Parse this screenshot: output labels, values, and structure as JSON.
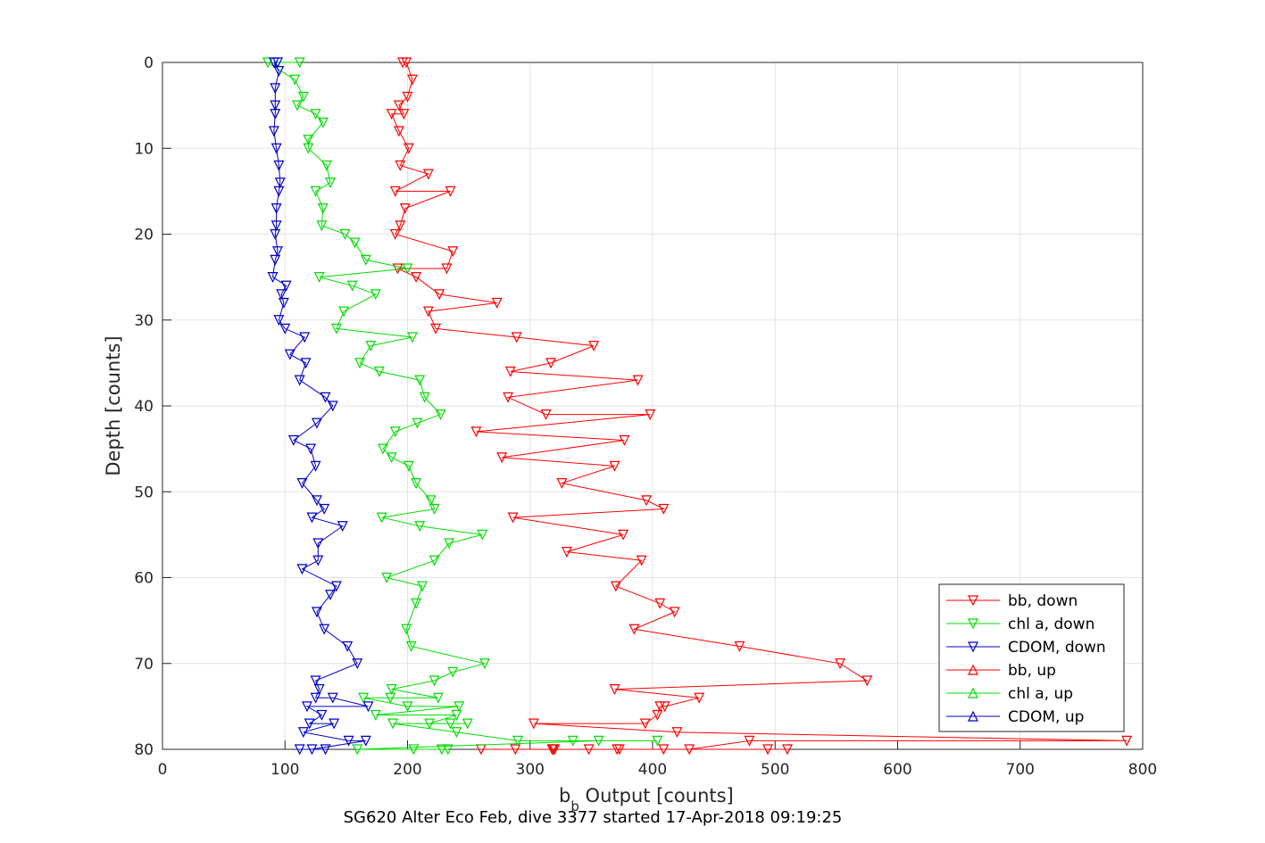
{
  "chart_data": {
    "type": "line",
    "xlabel_main": "b",
    "xlabel_sub": "b",
    "xlabel_rest": " Output [counts]",
    "ylabel": "Depth [counts]",
    "subtitle": "SG620 Alter Eco Feb, dive 3377 started 17-Apr-2018 09:19:25",
    "xlim": [
      0,
      800
    ],
    "ylim": [
      0,
      80
    ],
    "y_reversed": true,
    "grid": true,
    "legend_position": "bottom-right",
    "xticks": [
      "0",
      "100",
      "200",
      "300",
      "400",
      "500",
      "600",
      "700",
      "800"
    ],
    "yticks": [
      "0",
      "10",
      "20",
      "30",
      "40",
      "50",
      "60",
      "70",
      "80"
    ],
    "series": [
      {
        "name": "bb, down",
        "color": "#ff0000",
        "marker": "down",
        "points": [
          [
            196,
            0
          ],
          [
            199,
            0
          ],
          [
            204,
            2
          ],
          [
            200,
            4
          ],
          [
            193,
            5
          ],
          [
            197,
            6
          ],
          [
            187,
            6
          ],
          [
            193,
            8
          ],
          [
            201,
            10
          ],
          [
            194,
            12
          ],
          [
            217,
            13
          ],
          [
            190,
            15
          ],
          [
            235,
            15
          ],
          [
            198,
            17
          ],
          [
            194,
            19
          ],
          [
            190,
            20
          ],
          [
            237,
            22
          ],
          [
            232,
            24
          ],
          [
            192,
            24
          ],
          [
            207,
            25
          ],
          [
            226,
            27
          ],
          [
            273,
            28
          ],
          [
            217,
            29
          ],
          [
            223,
            31
          ],
          [
            289,
            32
          ],
          [
            352,
            33
          ],
          [
            317,
            35
          ],
          [
            284,
            36
          ],
          [
            388,
            37
          ],
          [
            282,
            39
          ],
          [
            313,
            41
          ],
          [
            398,
            41
          ],
          [
            256,
            43
          ],
          [
            377,
            44
          ],
          [
            277,
            46
          ],
          [
            369,
            47
          ],
          [
            326,
            49
          ],
          [
            395,
            51
          ],
          [
            409,
            52
          ],
          [
            286,
            53
          ],
          [
            376,
            55
          ],
          [
            330,
            57
          ],
          [
            391,
            58
          ],
          [
            370,
            61
          ],
          [
            406,
            63
          ],
          [
            418,
            64
          ],
          [
            385,
            66
          ],
          [
            471,
            68
          ],
          [
            553,
            70
          ],
          [
            575,
            72
          ],
          [
            369,
            73
          ],
          [
            438,
            74
          ],
          [
            410,
            75
          ],
          [
            406,
            75
          ],
          [
            404,
            76
          ],
          [
            394,
            77
          ],
          [
            303,
            77
          ],
          [
            420,
            78
          ],
          [
            787,
            79
          ],
          [
            479,
            79
          ],
          [
            430,
            80
          ],
          [
            373,
            80
          ],
          [
            318,
            80
          ],
          [
            348,
            80
          ],
          [
            260,
            80
          ],
          [
            494,
            80
          ],
          [
            510,
            80
          ],
          [
            371,
            80
          ],
          [
            288,
            80
          ],
          [
            409,
            80
          ],
          [
            320,
            80
          ],
          [
            319,
            80
          ]
        ]
      },
      {
        "name": "chl a, down",
        "color": "#00dd00",
        "marker": "down",
        "points": [
          [
            112,
            0
          ],
          [
            86,
            0
          ],
          [
            108,
            2
          ],
          [
            115,
            4
          ],
          [
            110,
            5
          ],
          [
            125,
            6
          ],
          [
            131,
            7
          ],
          [
            119,
            9
          ],
          [
            119,
            10
          ],
          [
            134,
            12
          ],
          [
            137,
            14
          ],
          [
            125,
            15
          ],
          [
            131,
            17
          ],
          [
            130,
            19
          ],
          [
            149,
            20
          ],
          [
            157,
            21
          ],
          [
            166,
            23
          ],
          [
            200,
            24
          ],
          [
            128,
            25
          ],
          [
            155,
            26
          ],
          [
            174,
            27
          ],
          [
            148,
            29
          ],
          [
            142,
            31
          ],
          [
            204,
            32
          ],
          [
            170,
            33
          ],
          [
            161,
            35
          ],
          [
            177,
            36
          ],
          [
            210,
            37
          ],
          [
            214,
            39
          ],
          [
            227,
            41
          ],
          [
            208,
            42
          ],
          [
            190,
            43
          ],
          [
            180,
            45
          ],
          [
            187,
            46
          ],
          [
            201,
            47
          ],
          [
            207,
            49
          ],
          [
            219,
            51
          ],
          [
            222,
            52
          ],
          [
            179,
            53
          ],
          [
            210,
            54
          ],
          [
            261,
            55
          ],
          [
            234,
            56
          ],
          [
            222,
            58
          ],
          [
            183,
            60
          ],
          [
            212,
            61
          ],
          [
            207,
            63
          ],
          [
            199,
            66
          ],
          [
            203,
            68
          ],
          [
            263,
            70
          ],
          [
            237,
            71
          ],
          [
            222,
            72
          ],
          [
            187,
            73
          ],
          [
            225,
            74
          ],
          [
            186,
            74
          ],
          [
            164,
            74
          ],
          [
            200,
            75
          ],
          [
            242,
            75
          ],
          [
            174,
            76
          ],
          [
            240,
            76
          ],
          [
            218,
            77
          ],
          [
            235,
            77
          ],
          [
            249,
            77
          ],
          [
            188,
            77
          ],
          [
            240,
            78
          ],
          [
            290,
            79
          ],
          [
            404,
            79
          ],
          [
            335,
            79
          ],
          [
            356,
            79
          ],
          [
            159,
            80
          ],
          [
            205,
            80
          ],
          [
            228,
            80
          ],
          [
            233,
            80
          ]
        ]
      },
      {
        "name": "CDOM, down",
        "color": "#0000cc",
        "marker": "down",
        "points": [
          [
            94,
            0
          ],
          [
            91,
            0
          ],
          [
            95,
            1
          ],
          [
            92,
            3
          ],
          [
            92,
            5
          ],
          [
            92,
            6
          ],
          [
            91,
            8
          ],
          [
            93,
            10
          ],
          [
            95,
            12
          ],
          [
            96,
            14
          ],
          [
            95,
            15
          ],
          [
            93,
            17
          ],
          [
            93,
            19
          ],
          [
            92,
            20
          ],
          [
            94,
            22
          ],
          [
            92,
            23
          ],
          [
            90,
            25
          ],
          [
            101,
            26
          ],
          [
            97,
            27
          ],
          [
            99,
            28
          ],
          [
            95,
            30
          ],
          [
            100,
            31
          ],
          [
            116,
            32
          ],
          [
            104,
            34
          ],
          [
            117,
            35
          ],
          [
            112,
            37
          ],
          [
            133,
            39
          ],
          [
            139,
            40
          ],
          [
            126,
            42
          ],
          [
            107,
            44
          ],
          [
            121,
            45
          ],
          [
            125,
            47
          ],
          [
            114,
            49
          ],
          [
            126,
            51
          ],
          [
            132,
            52
          ],
          [
            122,
            53
          ],
          [
            147,
            54
          ],
          [
            127,
            56
          ],
          [
            127,
            58
          ],
          [
            114,
            59
          ],
          [
            142,
            61
          ],
          [
            137,
            62
          ],
          [
            126,
            64
          ],
          [
            132,
            66
          ],
          [
            151,
            68
          ],
          [
            159,
            70
          ],
          [
            125,
            72
          ],
          [
            128,
            73
          ],
          [
            125,
            74
          ],
          [
            139,
            74
          ],
          [
            168,
            75
          ],
          [
            118,
            75
          ],
          [
            130,
            76
          ],
          [
            120,
            77
          ],
          [
            140,
            77
          ],
          [
            115,
            78
          ],
          [
            152,
            79
          ],
          [
            166,
            79
          ],
          [
            122,
            80
          ],
          [
            112,
            80
          ],
          [
            133,
            80
          ]
        ]
      }
    ],
    "legend": [
      "bb, down",
      "chl a, down",
      "CDOM, down",
      "bb, up",
      "chl a, up",
      "CDOM, up"
    ]
  }
}
